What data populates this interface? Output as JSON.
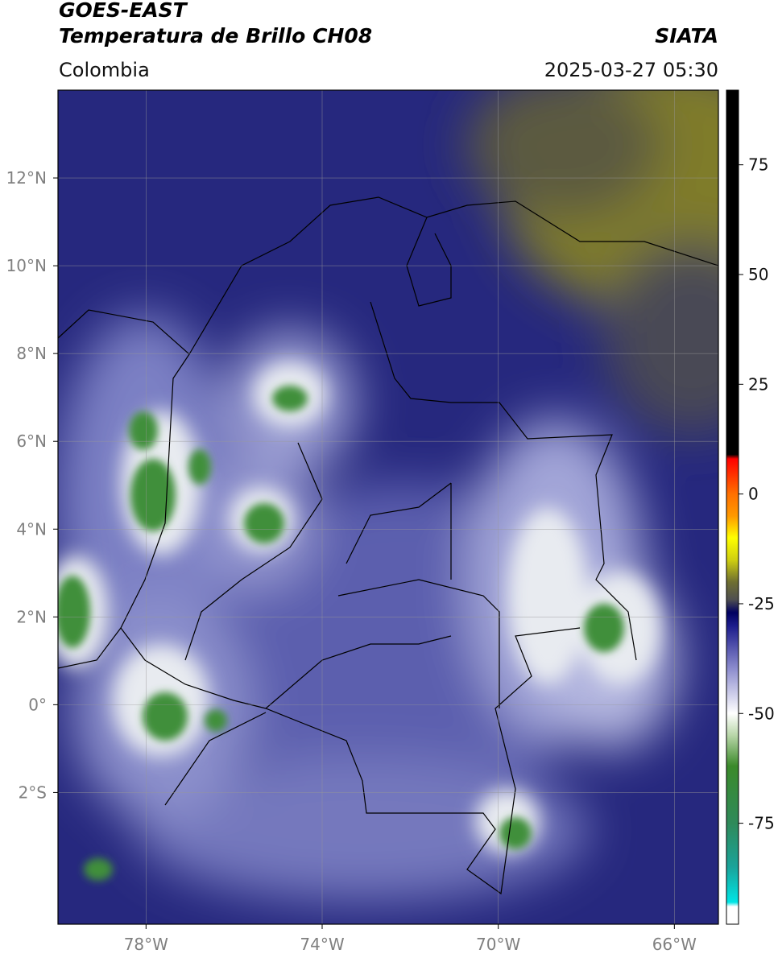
{
  "header": {
    "title": "GOES-EAST",
    "subtitle": "Temperatura de Brillo CH08",
    "organization": "SIATA",
    "region": "Colombia",
    "datetime": "2025-03-27 05:30"
  },
  "map": {
    "lonlim": [
      -80,
      -65
    ],
    "latlim": [
      -5,
      14
    ],
    "xticks": [
      {
        "value": -78,
        "label": "78°W"
      },
      {
        "value": -74,
        "label": "74°W"
      },
      {
        "value": -70,
        "label": "70°W"
      },
      {
        "value": -66,
        "label": "66°W"
      }
    ],
    "yticks": [
      {
        "value": 12,
        "label": "12°N"
      },
      {
        "value": 10,
        "label": "10°N"
      },
      {
        "value": 8,
        "label": "8°N"
      },
      {
        "value": 6,
        "label": "6°N"
      },
      {
        "value": 4,
        "label": "4°N"
      },
      {
        "value": 2,
        "label": "2°N"
      },
      {
        "value": 0,
        "label": "0°"
      },
      {
        "value": -2,
        "label": "2°S"
      }
    ]
  },
  "colorbar": {
    "lim": [
      -98,
      92
    ],
    "ticks": [
      75,
      50,
      25,
      0,
      -25,
      -50,
      -75
    ],
    "stops": [
      {
        "value": -98,
        "color": "#ffffff"
      },
      {
        "value": -94,
        "color": "#ffffff"
      },
      {
        "value": -93,
        "color": "#00e5e5"
      },
      {
        "value": -85,
        "color": "#1aa39a"
      },
      {
        "value": -75,
        "color": "#2f8a5a"
      },
      {
        "value": -62,
        "color": "#3b8a2a"
      },
      {
        "value": -55,
        "color": "#b8d6a8"
      },
      {
        "value": -50,
        "color": "#ffffff"
      },
      {
        "value": -40,
        "color": "#8f8fcf"
      },
      {
        "value": -30,
        "color": "#1c1c8c"
      },
      {
        "value": -27,
        "color": "#000060"
      },
      {
        "value": -24,
        "color": "#505050"
      },
      {
        "value": -20,
        "color": "#6f6f30"
      },
      {
        "value": -15,
        "color": "#cfcf10"
      },
      {
        "value": -10,
        "color": "#ffff00"
      },
      {
        "value": -5,
        "color": "#ff9900"
      },
      {
        "value": 0,
        "color": "#ff7000"
      },
      {
        "value": 8,
        "color": "#ff0000"
      },
      {
        "value": 9,
        "color": "#000000"
      },
      {
        "value": 92,
        "color": "#000000"
      }
    ]
  }
}
